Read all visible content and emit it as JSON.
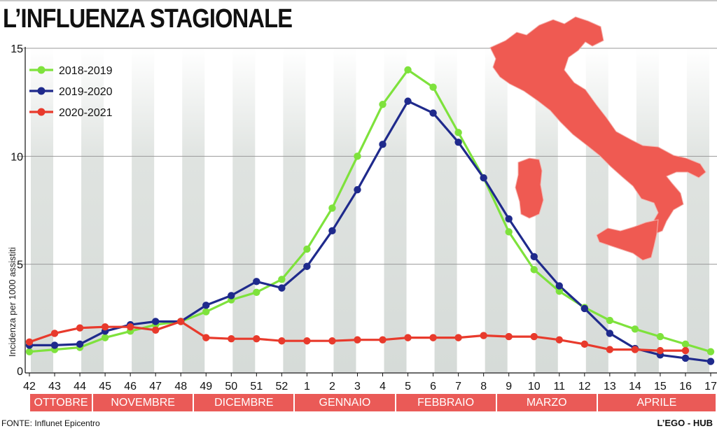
{
  "title": "L’INFLUENZA STAGIONALE",
  "source": "FONTE: Influnet Epicentro",
  "credit": "L’EGO - HUB",
  "chart_data": {
    "type": "line",
    "x": [
      "42",
      "43",
      "44",
      "45",
      "46",
      "47",
      "48",
      "49",
      "50",
      "51",
      "52",
      "1",
      "2",
      "3",
      "4",
      "5",
      "6",
      "7",
      "8",
      "9",
      "10",
      "11",
      "12",
      "13",
      "14",
      "15",
      "16",
      "17"
    ],
    "ylabel": "Incidenza per 1000 assistiti",
    "ylim": [
      0,
      15
    ],
    "yticks": [
      5,
      10,
      15
    ],
    "grid": true,
    "legend_position": "top-left",
    "months": [
      {
        "label": "OTTOBRE",
        "from": 0,
        "to": 3
      },
      {
        "label": "NOVEMBRE",
        "from": 3,
        "to": 7
      },
      {
        "label": "DICEMBRE",
        "from": 7,
        "to": 11
      },
      {
        "label": "GENNAIO",
        "from": 11,
        "to": 15
      },
      {
        "label": "FEBBRAIO",
        "from": 15,
        "to": 19
      },
      {
        "label": "MARZO",
        "from": 19,
        "to": 23
      },
      {
        "label": "APRILE",
        "from": 23,
        "to": 28
      }
    ],
    "series": [
      {
        "name": "2018-2019",
        "color": "#7ee23c",
        "values": [
          0.95,
          1.05,
          1.15,
          1.6,
          1.9,
          2.2,
          2.35,
          2.8,
          3.35,
          3.7,
          4.3,
          5.7,
          7.6,
          10.0,
          12.4,
          14.0,
          13.2,
          11.1,
          9.0,
          6.5,
          4.75,
          3.75,
          3.0,
          2.4,
          2.0,
          1.65,
          1.3,
          0.95
        ]
      },
      {
        "name": "2019-2020",
        "color": "#1f2a8c",
        "values": [
          1.25,
          1.25,
          1.3,
          1.9,
          2.2,
          2.35,
          2.35,
          3.1,
          3.55,
          4.2,
          3.9,
          4.9,
          6.55,
          8.45,
          10.55,
          12.55,
          12.0,
          10.65,
          9.0,
          7.1,
          5.35,
          4.0,
          2.95,
          1.8,
          1.1,
          0.8,
          0.65,
          0.5
        ]
      },
      {
        "name": "2020-2021",
        "color": "#e83a2c",
        "values": [
          1.4,
          1.8,
          2.05,
          2.1,
          2.1,
          1.95,
          2.35,
          1.6,
          1.55,
          1.55,
          1.45,
          1.45,
          1.45,
          1.5,
          1.5,
          1.6,
          1.6,
          1.6,
          1.7,
          1.65,
          1.65,
          1.5,
          1.3,
          1.05,
          1.05,
          1.0,
          1.0,
          null
        ]
      }
    ]
  },
  "colors": {
    "map": "#ef5a52",
    "band": "#dfe3e0",
    "gridline": "#9a9a9a"
  }
}
